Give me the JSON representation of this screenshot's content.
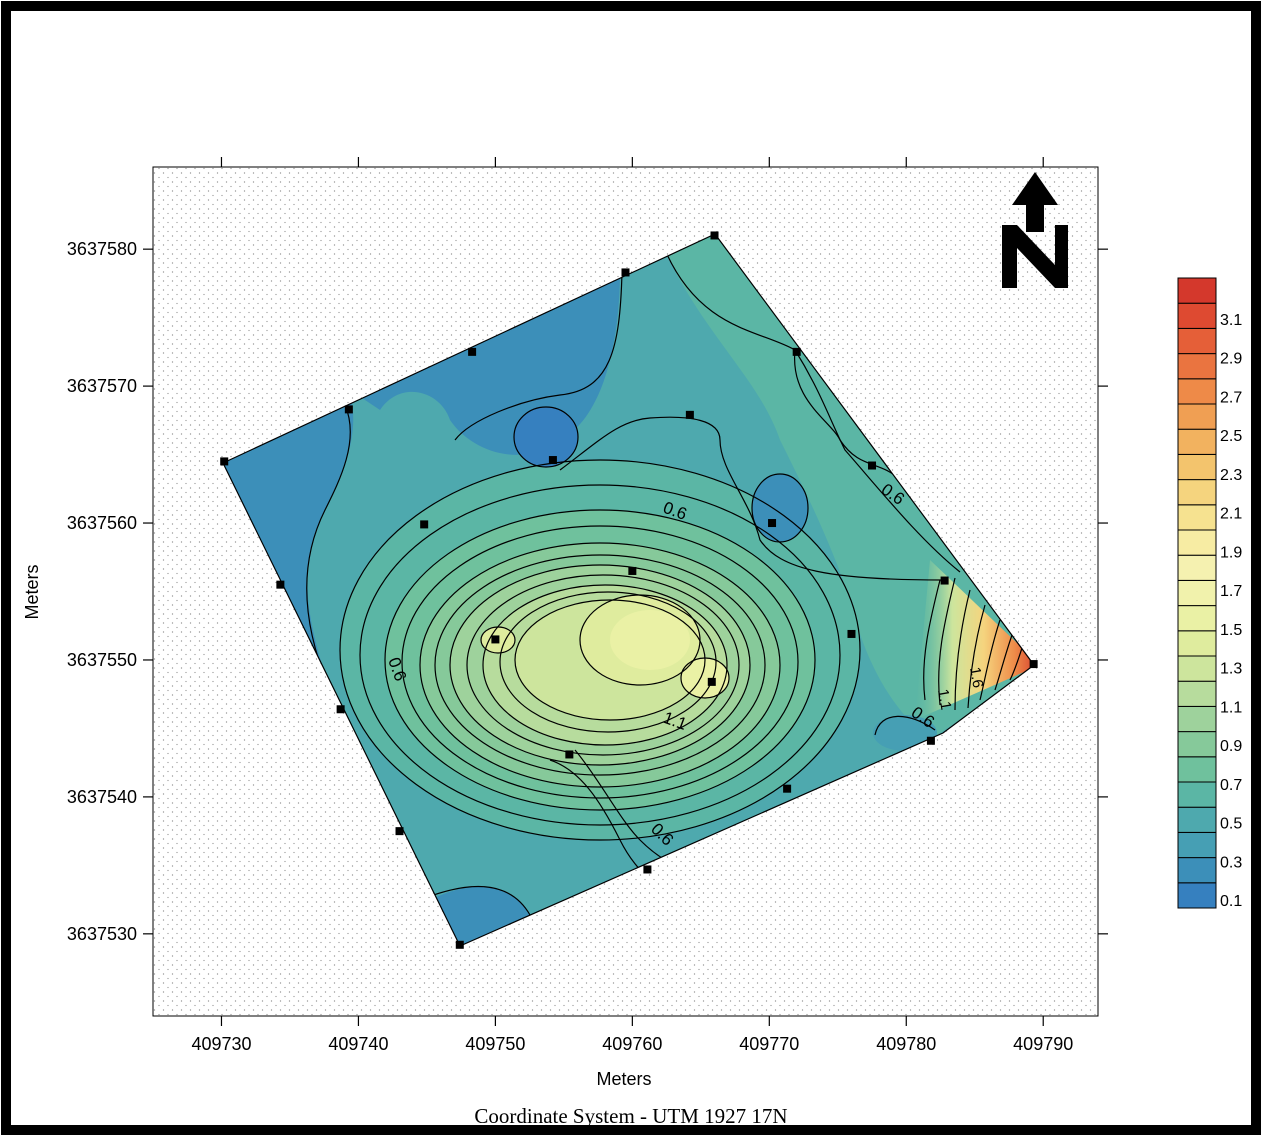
{
  "map": {
    "x_axis_label": "Meters",
    "y_axis_label": "Meters",
    "x_ticks": [
      "409730",
      "409740",
      "409750",
      "409760",
      "409770",
      "409780",
      "409790"
    ],
    "y_ticks": [
      "3637580",
      "3637570",
      "3637560",
      "3637550",
      "3637540",
      "3637530"
    ],
    "x_range": [
      409725,
      409794
    ],
    "y_range": [
      3637524,
      3637586
    ],
    "north_arrow": "north-arrow-icon",
    "north_label": "N",
    "footer": "Coordinate System - UTM 1927 17N",
    "contour_labels": [
      "0.6",
      "0.6",
      "0.6",
      "0.6",
      "0.6",
      "1.1",
      "0.6",
      "1.1",
      "1.6"
    ],
    "sample_points": [
      [
        409766,
        3637581
      ],
      [
        409759.5,
        3637578.3
      ],
      [
        409748.3,
        3637572.5
      ],
      [
        409739.3,
        3637568.3
      ],
      [
        409730.2,
        3637564.5
      ],
      [
        409772,
        3637572.5
      ],
      [
        409764.2,
        3637567.9
      ],
      [
        409754.2,
        3637564.6
      ],
      [
        409777.5,
        3637564.2
      ],
      [
        409770.2,
        3637560
      ],
      [
        409744.8,
        3637559.9
      ],
      [
        409782.8,
        3637555.8
      ],
      [
        409734.3,
        3637555.5
      ],
      [
        409760,
        3637556.5
      ],
      [
        409776,
        3637551.9
      ],
      [
        409750,
        3637551.5
      ],
      [
        409789.3,
        3637549.7
      ],
      [
        409765.8,
        3637548.4
      ],
      [
        409738.7,
        3637546.4
      ],
      [
        409781.8,
        3637544.1
      ],
      [
        409755.4,
        3637543.1
      ],
      [
        409771.3,
        3637540.6
      ],
      [
        409743,
        3637537.5
      ],
      [
        409761.1,
        3637534.7
      ],
      [
        409747.4,
        3637529.2
      ]
    ]
  },
  "legend": {
    "colors": [
      "#3680bf",
      "#3c8fb9",
      "#469fb4",
      "#4ea9ae",
      "#5bb6a5",
      "#6fc19d",
      "#86c99a",
      "#9ed29c",
      "#b7dc9d",
      "#cde59d",
      "#dfec9e",
      "#eaf1a5",
      "#f1f2ac",
      "#f5f1b0",
      "#f7eca3",
      "#f6e290",
      "#f5d47e",
      "#f3c46d",
      "#f2b25f",
      "#f09f53",
      "#ee8a48",
      "#ea7440",
      "#e55f38",
      "#de4a31",
      "#d4382c"
    ],
    "labels": [
      "0.1",
      "0.3",
      "0.5",
      "0.7",
      "0.9",
      "1.1",
      "1.3",
      "1.5",
      "1.7",
      "1.9",
      "2.1",
      "2.3",
      "2.5",
      "2.7",
      "2.9",
      "3.1"
    ]
  }
}
